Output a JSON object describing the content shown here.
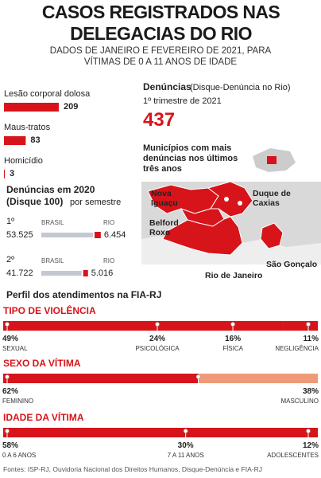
{
  "title": "CASOS REGISTRADOS NAS DELEGACIAS DO RIO",
  "subtitle": "DADOS DE JANEIRO E FEVEREIRO DE 2021, PARA VÍTIMAS DE 0 A 11 ANOS DE IDADE",
  "cases": [
    {
      "label": "Lesão corporal dolosa",
      "value": 209
    },
    {
      "label": "Maus-tratos",
      "value": 83
    },
    {
      "label": "Homicídio",
      "value": 3
    }
  ],
  "disque100": {
    "title": "Denúncias em 2020",
    "subtitle": "(Disque 100)",
    "note": "por semestre",
    "brasil_name": "BRASIL",
    "rio_name": "RIO",
    "rows": [
      {
        "label": "1º",
        "brasil": {
          "value": 53525,
          "label": "53.525"
        },
        "rio": {
          "value": 6454,
          "label": "6.454"
        }
      },
      {
        "label": "2º",
        "brasil": {
          "value": 41722,
          "label": "41.722"
        },
        "rio": {
          "value": 5016,
          "label": "5.016"
        }
      }
    ]
  },
  "disque_denuncia": {
    "title": "Denúncias",
    "note": "(Disque-Denúncia no Rio)",
    "period": "1º trimestre de 2021",
    "value": 437
  },
  "map": {
    "title": "Municípios com mais denúncias nos últimos três anos",
    "places": [
      "Nova Iguaçu",
      "Duque de Caxias",
      "Belford Roxo",
      "Rio de Janeiro",
      "São Gonçalo"
    ]
  },
  "fia": {
    "title": "Perfil dos atendimentos na FIA-RJ",
    "groups": [
      {
        "title": "TIPO DE VIOLÊNCIA",
        "items": [
          {
            "label": "SEXUAL",
            "value": 49,
            "value_label": "49%",
            "color": "#d7141a"
          },
          {
            "label": "PSICOLÓGICA",
            "value": 24,
            "value_label": "24%",
            "color": "#d7141a"
          },
          {
            "label": "FÍSICA",
            "value": 16,
            "value_label": "16%",
            "color": "#d7141a"
          },
          {
            "label": "NEGLIGÊNCIA",
            "value": 11,
            "value_label": "11%",
            "color": "#d7141a"
          }
        ]
      },
      {
        "title": "SEXO DA VÍTIMA",
        "items": [
          {
            "label": "FEMININO",
            "value": 62,
            "value_label": "62%",
            "color": "#d7141a"
          },
          {
            "label": "MASCULINO",
            "value": 38,
            "value_label": "38%",
            "color": "#ef9a78"
          }
        ]
      },
      {
        "title": "IDADE DA VÍTIMA",
        "items": [
          {
            "label": "0 A 6 ANOS",
            "value": 58,
            "value_label": "58%",
            "color": "#d7141a"
          },
          {
            "label": "7 A 11 ANOS",
            "value": 30,
            "value_label": "30%",
            "color": "#d7141a"
          },
          {
            "label": "ADOLESCENTES",
            "value": 12,
            "value_label": "12%",
            "color": "#d7141a"
          }
        ]
      }
    ]
  },
  "source": "Fontes: ISP-RJ, Ouvidoria Nacional dos Direitos Humanos, Disque-Denúncia e FIA-RJ"
}
